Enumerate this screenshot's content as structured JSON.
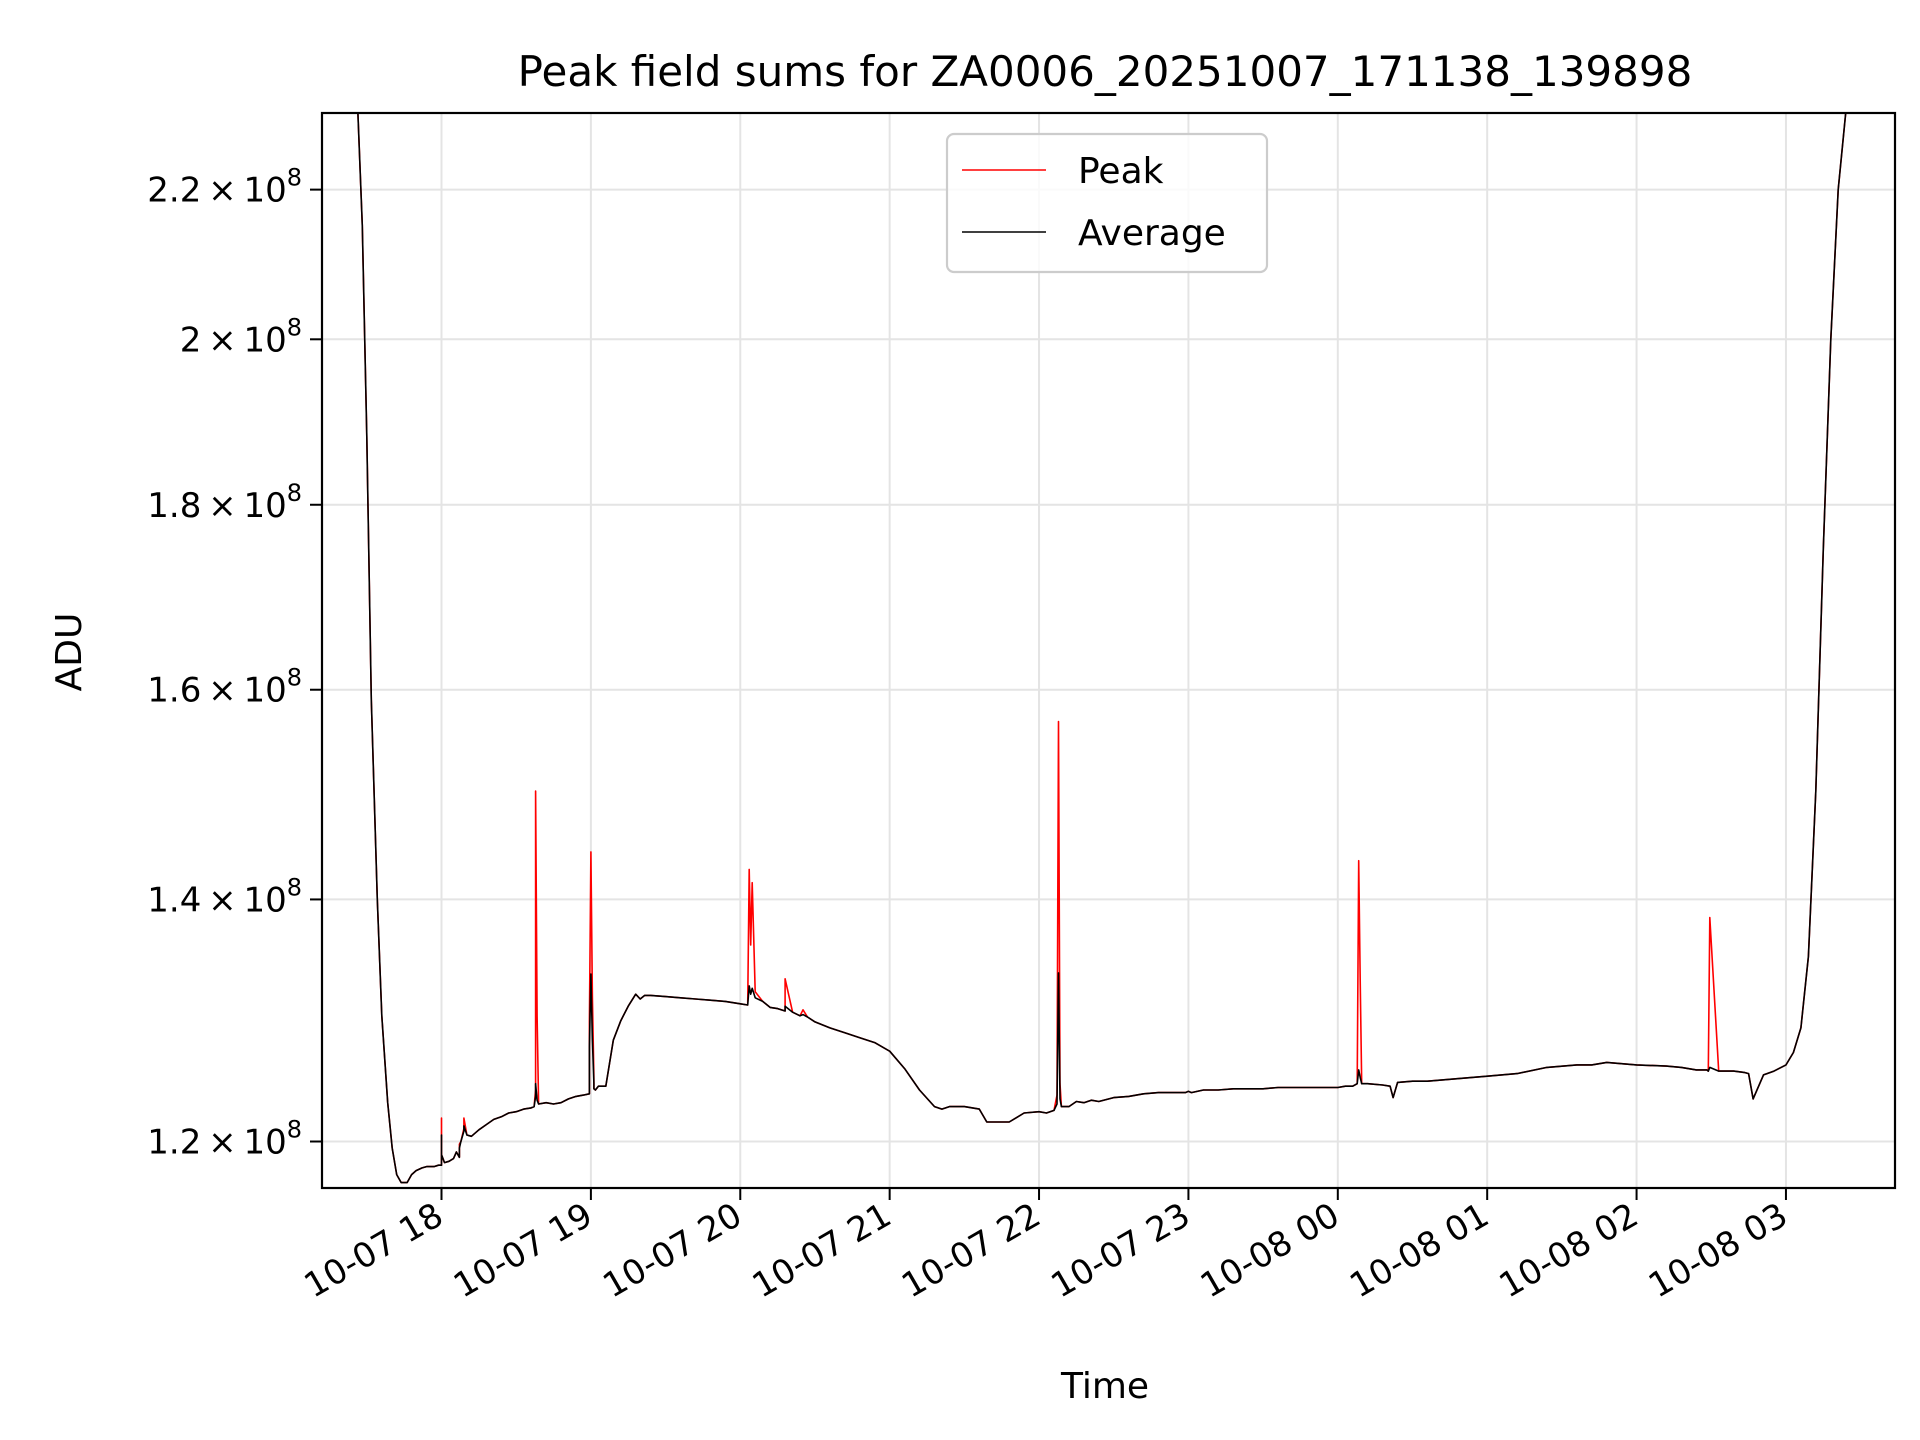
{
  "chart_data": {
    "type": "line",
    "title": "Peak field sums for ZA0006_20251007_171138_139898",
    "xlabel": "Time",
    "ylabel": "ADU",
    "yscale": "log",
    "xlim": [
      -0.8,
      9.73
    ],
    "ylim": [
      116500000,
      231000000
    ],
    "grid": true,
    "legend_position": "top-center",
    "x_ticks": [
      {
        "value": 0,
        "label": "10-07 18"
      },
      {
        "value": 1,
        "label": "10-07 19"
      },
      {
        "value": 2,
        "label": "10-07 20"
      },
      {
        "value": 3,
        "label": "10-07 21"
      },
      {
        "value": 4,
        "label": "10-07 22"
      },
      {
        "value": 5,
        "label": "10-07 23"
      },
      {
        "value": 6,
        "label": "10-08 00"
      },
      {
        "value": 7,
        "label": "10-08 01"
      },
      {
        "value": 8,
        "label": "10-08 02"
      },
      {
        "value": 9,
        "label": "10-08 03"
      }
    ],
    "y_ticks": [
      {
        "value": 120000000,
        "mantissa": "1.2",
        "exponent": "8"
      },
      {
        "value": 140000000,
        "mantissa": "1.4",
        "exponent": "8"
      },
      {
        "value": 160000000,
        "mantissa": "1.6",
        "exponent": "8"
      },
      {
        "value": 180000000,
        "mantissa": "1.8",
        "exponent": "8"
      },
      {
        "value": 200000000,
        "mantissa": "2",
        "exponent": "8"
      },
      {
        "value": 220000000,
        "mantissa": "2.2",
        "exponent": "8"
      }
    ],
    "x_unit_note": "x values are hours after 2025-10-07 18:00",
    "series": [
      {
        "name": "Peak",
        "color": "#ff0000",
        "x": [
          -0.56,
          -0.53,
          -0.5,
          -0.47,
          -0.43,
          -0.4,
          -0.36,
          -0.33,
          -0.3,
          -0.27,
          -0.23,
          -0.2,
          -0.17,
          -0.13,
          -0.1,
          -0.07,
          -0.05,
          -0.02,
          0.0,
          0.0,
          0.0,
          0.02,
          0.05,
          0.08,
          0.1,
          0.12,
          0.12,
          0.13,
          0.15,
          0.15,
          0.17,
          0.2,
          0.25,
          0.3,
          0.35,
          0.4,
          0.45,
          0.5,
          0.55,
          0.6,
          0.62,
          0.63,
          0.63,
          0.64,
          0.65,
          0.7,
          0.75,
          0.8,
          0.85,
          0.9,
          0.95,
          0.99,
          0.99,
          1.0,
          1.01,
          1.02,
          1.02,
          1.03,
          1.05,
          1.1,
          1.15,
          1.2,
          1.25,
          1.3,
          1.33,
          1.36,
          1.4,
          1.5,
          1.6,
          1.7,
          1.8,
          1.9,
          2.0,
          2.05,
          2.06,
          2.07,
          2.08,
          2.1,
          2.15,
          2.2,
          2.25,
          2.3,
          2.3,
          2.35,
          2.4,
          2.42,
          2.45,
          2.5,
          2.6,
          2.7,
          2.8,
          2.9,
          3.0,
          3.1,
          3.2,
          3.3,
          3.35,
          3.4,
          3.5,
          3.6,
          3.65,
          3.7,
          3.8,
          3.9,
          4.0,
          4.05,
          4.1,
          4.12,
          4.13,
          4.14,
          4.15,
          4.2,
          4.25,
          4.3,
          4.35,
          4.4,
          4.5,
          4.6,
          4.7,
          4.8,
          4.9,
          4.98,
          5.0,
          5.02,
          5.1,
          5.2,
          5.3,
          5.4,
          5.5,
          5.6,
          5.7,
          5.8,
          5.9,
          6.0,
          6.05,
          6.1,
          6.13,
          6.14,
          6.15,
          6.16,
          6.2,
          6.3,
          6.35,
          6.37,
          6.4,
          6.5,
          6.6,
          6.7,
          6.8,
          6.9,
          7.0,
          7.2,
          7.4,
          7.6,
          7.7,
          7.8,
          8.0,
          8.2,
          8.3,
          8.4,
          8.47,
          8.48,
          8.49,
          8.55,
          8.65,
          8.72,
          8.75,
          8.78,
          8.85,
          8.92,
          9.0,
          9.05,
          9.1,
          9.15,
          9.2,
          9.25,
          9.3,
          9.35,
          9.4
        ],
        "values": [
          231000000,
          215000000,
          188000000,
          159000000,
          140000000,
          130000000,
          123000000,
          119500000,
          117500000,
          116900000,
          116900000,
          117500000,
          117800000,
          118000000,
          118100000,
          118100000,
          118100000,
          118200000,
          118200000,
          121800000,
          119000000,
          118400000,
          118500000,
          118700000,
          119200000,
          118800000,
          119800000,
          120000000,
          121000000,
          121800000,
          120500000,
          120400000,
          120900000,
          121300000,
          121700000,
          121900000,
          122200000,
          122300000,
          122500000,
          122600000,
          122700000,
          124000000,
          150000000,
          130000000,
          122900000,
          123000000,
          122900000,
          123000000,
          123300000,
          123500000,
          123600000,
          123700000,
          129500000,
          144300000,
          131500000,
          125000000,
          124100000,
          124000000,
          124300000,
          124300000,
          128000000,
          129600000,
          130800000,
          131800000,
          131400000,
          131700000,
          131700000,
          131600000,
          131500000,
          131400000,
          131300000,
          131200000,
          131000000,
          130900000,
          142700000,
          136000000,
          141500000,
          132000000,
          131200000,
          130700000,
          130600000,
          130400000,
          133100000,
          130300000,
          130000000,
          130500000,
          129900000,
          129500000,
          129000000,
          128600000,
          128200000,
          127800000,
          127100000,
          125700000,
          124000000,
          122700000,
          122500000,
          122700000,
          122700000,
          122500000,
          121500000,
          121500000,
          121500000,
          122200000,
          122300000,
          122200000,
          122400000,
          123600000,
          156800000,
          124500000,
          122700000,
          122700000,
          123100000,
          123000000,
          123200000,
          123100000,
          123400000,
          123500000,
          123700000,
          123800000,
          123800000,
          123800000,
          123900000,
          123800000,
          124000000,
          124000000,
          124100000,
          124100000,
          124100000,
          124200000,
          124200000,
          124200000,
          124200000,
          124200000,
          124300000,
          124300000,
          124500000,
          143500000,
          133000000,
          124500000,
          124500000,
          124400000,
          124300000,
          123400000,
          124600000,
          124700000,
          124700000,
          124800000,
          124900000,
          125000000,
          125100000,
          125300000,
          125800000,
          126000000,
          126000000,
          126200000,
          126000000,
          125900000,
          125800000,
          125600000,
          125600000,
          125500000,
          138400000,
          125500000,
          125500000,
          125400000,
          125300000,
          123300000,
          125200000,
          125500000,
          126000000,
          127000000,
          129000000,
          135000000,
          150000000,
          175000000,
          200000000,
          220000000,
          231000000
        ],
        "line_width": 1.6
      },
      {
        "name": "Average",
        "color": "#000000",
        "x": [
          -0.56,
          -0.53,
          -0.5,
          -0.47,
          -0.43,
          -0.4,
          -0.36,
          -0.33,
          -0.3,
          -0.27,
          -0.23,
          -0.2,
          -0.17,
          -0.13,
          -0.1,
          -0.07,
          -0.05,
          -0.02,
          0.0,
          0.0,
          0.0,
          0.02,
          0.05,
          0.08,
          0.1,
          0.12,
          0.12,
          0.13,
          0.15,
          0.15,
          0.17,
          0.2,
          0.25,
          0.3,
          0.35,
          0.4,
          0.45,
          0.5,
          0.55,
          0.6,
          0.62,
          0.63,
          0.63,
          0.64,
          0.65,
          0.7,
          0.75,
          0.8,
          0.85,
          0.9,
          0.95,
          0.99,
          0.99,
          1.0,
          1.01,
          1.02,
          1.02,
          1.03,
          1.05,
          1.1,
          1.15,
          1.2,
          1.25,
          1.3,
          1.33,
          1.36,
          1.4,
          1.5,
          1.6,
          1.7,
          1.8,
          1.9,
          2.0,
          2.05,
          2.06,
          2.07,
          2.08,
          2.1,
          2.15,
          2.2,
          2.25,
          2.3,
          2.3,
          2.35,
          2.4,
          2.42,
          2.45,
          2.5,
          2.6,
          2.7,
          2.8,
          2.9,
          3.0,
          3.1,
          3.2,
          3.3,
          3.35,
          3.4,
          3.5,
          3.6,
          3.65,
          3.7,
          3.8,
          3.9,
          4.0,
          4.05,
          4.1,
          4.12,
          4.13,
          4.14,
          4.15,
          4.2,
          4.25,
          4.3,
          4.35,
          4.4,
          4.5,
          4.6,
          4.7,
          4.8,
          4.9,
          4.98,
          5.0,
          5.02,
          5.1,
          5.2,
          5.3,
          5.4,
          5.5,
          5.6,
          5.7,
          5.8,
          5.9,
          6.0,
          6.05,
          6.1,
          6.13,
          6.14,
          6.15,
          6.16,
          6.2,
          6.3,
          6.35,
          6.37,
          6.4,
          6.5,
          6.6,
          6.7,
          6.8,
          6.9,
          7.0,
          7.2,
          7.4,
          7.6,
          7.7,
          7.8,
          8.0,
          8.2,
          8.3,
          8.4,
          8.47,
          8.48,
          8.49,
          8.55,
          8.65,
          8.72,
          8.75,
          8.78,
          8.85,
          8.92,
          9.0,
          9.05,
          9.1,
          9.15,
          9.2,
          9.25,
          9.3,
          9.35,
          9.4
        ],
        "values": [
          231000000,
          215000000,
          188000000,
          159000000,
          140000000,
          130000000,
          123000000,
          119500000,
          117500000,
          116900000,
          116900000,
          117500000,
          117800000,
          118000000,
          118100000,
          118100000,
          118100000,
          118200000,
          118200000,
          120500000,
          119000000,
          118400000,
          118500000,
          118700000,
          119200000,
          118800000,
          119500000,
          120000000,
          120800000,
          121200000,
          120500000,
          120400000,
          120900000,
          121300000,
          121700000,
          121900000,
          122200000,
          122300000,
          122500000,
          122600000,
          122700000,
          123500000,
          124500000,
          123200000,
          122900000,
          123000000,
          122900000,
          123000000,
          123300000,
          123500000,
          123600000,
          123700000,
          127500000,
          133500000,
          128000000,
          124500000,
          124100000,
          124000000,
          124300000,
          124300000,
          128000000,
          129600000,
          130800000,
          131800000,
          131400000,
          131700000,
          131700000,
          131600000,
          131500000,
          131400000,
          131300000,
          131200000,
          131000000,
          130900000,
          132500000,
          131800000,
          132300000,
          131500000,
          131200000,
          130700000,
          130600000,
          130400000,
          130800000,
          130300000,
          130000000,
          130100000,
          129900000,
          129500000,
          129000000,
          128600000,
          128200000,
          127800000,
          127100000,
          125700000,
          124000000,
          122700000,
          122500000,
          122700000,
          122700000,
          122500000,
          121500000,
          121500000,
          121500000,
          122200000,
          122300000,
          122200000,
          122400000,
          122900000,
          133600000,
          123300000,
          122700000,
          122700000,
          123100000,
          123000000,
          123200000,
          123100000,
          123400000,
          123500000,
          123700000,
          123800000,
          123800000,
          123800000,
          123900000,
          123800000,
          124000000,
          124000000,
          124100000,
          124100000,
          124100000,
          124200000,
          124200000,
          124200000,
          124200000,
          124200000,
          124300000,
          124300000,
          124500000,
          125600000,
          125000000,
          124500000,
          124500000,
          124400000,
          124300000,
          123400000,
          124600000,
          124700000,
          124700000,
          124800000,
          124900000,
          125000000,
          125100000,
          125300000,
          125800000,
          126000000,
          126000000,
          126200000,
          126000000,
          125900000,
          125800000,
          125600000,
          125600000,
          125500000,
          125800000,
          125500000,
          125500000,
          125400000,
          125300000,
          123300000,
          125200000,
          125500000,
          126000000,
          127000000,
          129000000,
          135000000,
          150000000,
          175000000,
          200000000,
          220000000,
          231000000
        ],
        "line_width": 1.6
      }
    ]
  }
}
